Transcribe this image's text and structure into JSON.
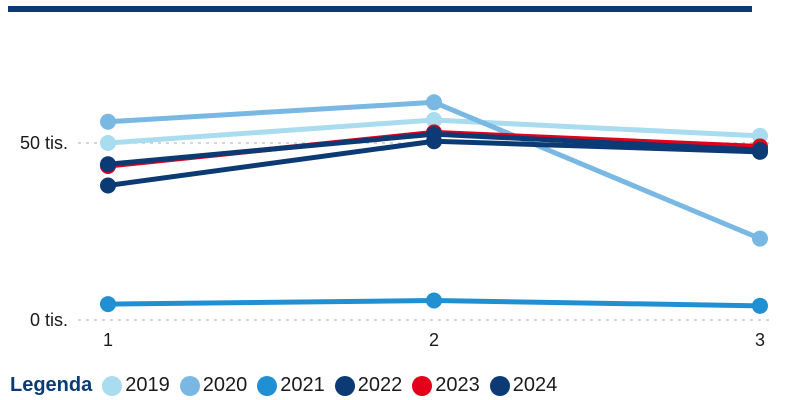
{
  "chart_data": {
    "type": "line",
    "x": [
      1,
      2,
      3
    ],
    "x_tick_labels": [
      "1",
      "2",
      "3"
    ],
    "y_ticks": [
      0,
      50000
    ],
    "y_tick_labels": [
      "0 tis.",
      "50 tis."
    ],
    "ylim": [
      0,
      70000
    ],
    "grid": "dotted horizontal at ticks",
    "legend_title": "Legenda",
    "legend_placement": "bottom",
    "series": [
      {
        "name": "2019",
        "color": "#a8dcee",
        "values": [
          50000,
          56500,
          52000
        ]
      },
      {
        "name": "2020",
        "color": "#79b8e3",
        "values": [
          56000,
          61500,
          23000
        ]
      },
      {
        "name": "2021",
        "color": "#2190d2",
        "values": [
          4500,
          5500,
          4000
        ]
      },
      {
        "name": "2022",
        "color": "#0b3a74",
        "values": [
          38000,
          50500,
          47500
        ]
      },
      {
        "name": "2023",
        "color": "#e2001a",
        "values": [
          43500,
          53000,
          49000
        ]
      },
      {
        "name": "2024",
        "color": "#0b3a74",
        "values": [
          44000,
          52500,
          48000
        ]
      }
    ]
  }
}
